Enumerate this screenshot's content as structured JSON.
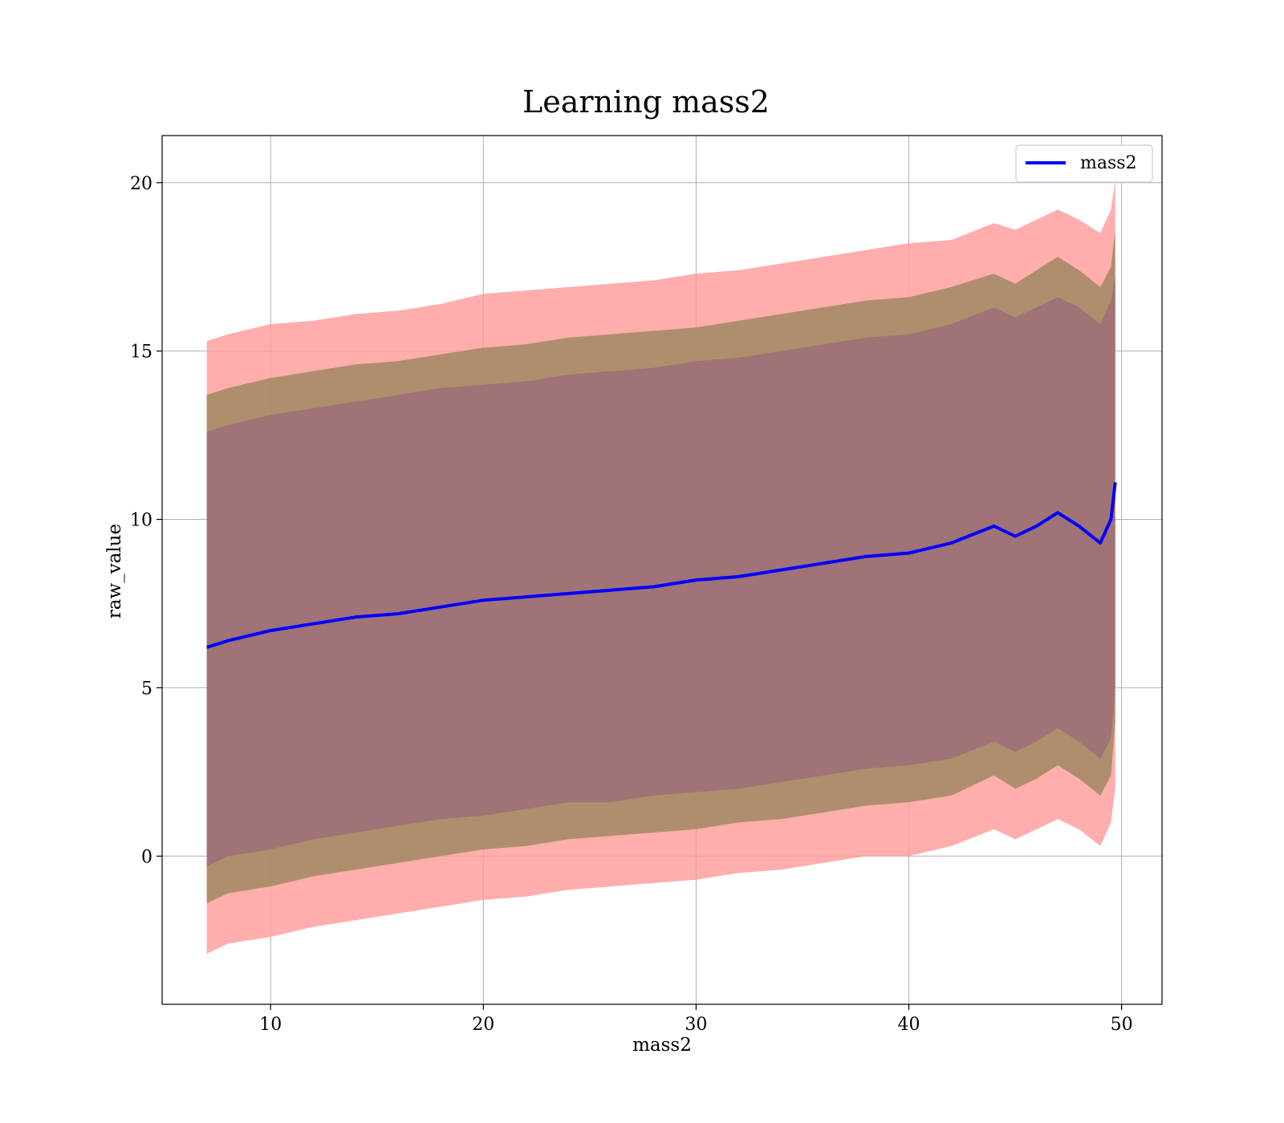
{
  "chart_data": {
    "type": "line",
    "title": "Learning mass2",
    "xlabel": "mass2",
    "ylabel": "raw_value",
    "xlim": [
      4.9,
      51.9
    ],
    "ylim": [
      -4.4,
      21.4
    ],
    "xticks": [
      10,
      20,
      30,
      40,
      50
    ],
    "yticks": [
      0,
      5,
      10,
      15,
      20
    ],
    "grid": true,
    "legend": {
      "placement": "top-right",
      "entries": [
        "mass2"
      ]
    },
    "colors": {
      "line": "#0000ff",
      "band_outer": "#ff9999",
      "band_mid": "#a08860",
      "band_inner": "#9e6e78",
      "grid": "#b0b0b0"
    },
    "series": [
      {
        "name": "mass2",
        "x": [
          7,
          8,
          10,
          12,
          14,
          16,
          18,
          20,
          22,
          24,
          26,
          28,
          30,
          32,
          34,
          36,
          38,
          40,
          42,
          44,
          45,
          46,
          47,
          48,
          49,
          49.5,
          49.7
        ],
        "y": [
          6.2,
          6.4,
          6.7,
          6.9,
          7.1,
          7.2,
          7.4,
          7.6,
          7.7,
          7.8,
          7.9,
          8.0,
          8.2,
          8.3,
          8.5,
          8.7,
          8.9,
          9.0,
          9.3,
          9.8,
          9.5,
          9.8,
          10.2,
          9.8,
          9.3,
          10.0,
          11.1
        ]
      }
    ],
    "bands": [
      {
        "level": "outer",
        "lower": [
          -2.9,
          -2.6,
          -2.4,
          -2.1,
          -1.9,
          -1.7,
          -1.5,
          -1.3,
          -1.2,
          -1.0,
          -0.9,
          -0.8,
          -0.7,
          -0.5,
          -0.4,
          -0.2,
          0.0,
          0.0,
          0.3,
          0.8,
          0.5,
          0.8,
          1.1,
          0.8,
          0.3,
          1.0,
          2.0
        ],
        "upper": [
          15.3,
          15.5,
          15.8,
          15.9,
          16.1,
          16.2,
          16.4,
          16.7,
          16.8,
          16.9,
          17.0,
          17.1,
          17.3,
          17.4,
          17.6,
          17.8,
          18.0,
          18.2,
          18.3,
          18.8,
          18.6,
          18.9,
          19.2,
          18.9,
          18.5,
          19.2,
          20.1
        ]
      },
      {
        "level": "middle",
        "lower": [
          -1.4,
          -1.1,
          -0.9,
          -0.6,
          -0.4,
          -0.2,
          0.0,
          0.2,
          0.3,
          0.5,
          0.6,
          0.7,
          0.8,
          1.0,
          1.1,
          1.3,
          1.5,
          1.6,
          1.8,
          2.4,
          2.0,
          2.3,
          2.7,
          2.3,
          1.8,
          2.4,
          4.0
        ],
        "upper": [
          13.7,
          13.9,
          14.2,
          14.4,
          14.6,
          14.7,
          14.9,
          15.1,
          15.2,
          15.4,
          15.5,
          15.6,
          15.7,
          15.9,
          16.1,
          16.3,
          16.5,
          16.6,
          16.9,
          17.3,
          17.0,
          17.4,
          17.8,
          17.4,
          16.9,
          17.5,
          18.6
        ]
      },
      {
        "level": "inner",
        "lower": [
          -0.3,
          0.0,
          0.2,
          0.5,
          0.7,
          0.9,
          1.1,
          1.2,
          1.4,
          1.6,
          1.6,
          1.8,
          1.9,
          2.0,
          2.2,
          2.4,
          2.6,
          2.7,
          2.9,
          3.4,
          3.1,
          3.4,
          3.8,
          3.4,
          2.9,
          3.5,
          5.0
        ],
        "upper": [
          12.6,
          12.8,
          13.1,
          13.3,
          13.5,
          13.7,
          13.9,
          14.0,
          14.1,
          14.3,
          14.4,
          14.5,
          14.7,
          14.8,
          15.0,
          15.2,
          15.4,
          15.5,
          15.8,
          16.3,
          16.0,
          16.3,
          16.6,
          16.3,
          15.8,
          16.5,
          17.2
        ]
      }
    ]
  }
}
